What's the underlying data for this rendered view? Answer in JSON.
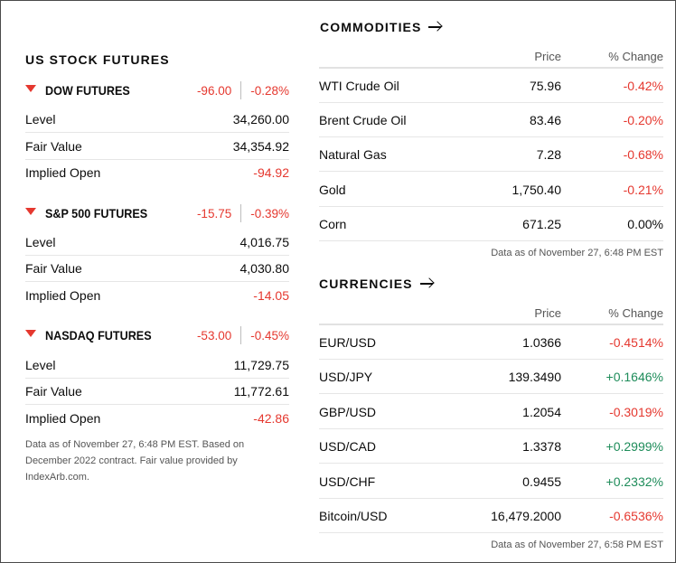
{
  "stock_futures": {
    "title": "US STOCK FUTURES",
    "futures": [
      {
        "name": "DOW FUTURES",
        "change": "-96.00",
        "pct_change": "-0.28%",
        "rows": [
          {
            "label": "Level",
            "value": "34,260.00"
          },
          {
            "label": "Fair Value",
            "value": "34,354.92"
          },
          {
            "label": "Implied Open",
            "value": "-94.92"
          }
        ]
      },
      {
        "name": "S&P 500 FUTURES",
        "change": "-15.75",
        "pct_change": "-0.39%",
        "rows": [
          {
            "label": "Level",
            "value": "4,016.75"
          },
          {
            "label": "Fair Value",
            "value": "4,030.80"
          },
          {
            "label": "Implied Open",
            "value": "-14.05"
          }
        ]
      },
      {
        "name": "NASDAQ FUTURES",
        "change": "-53.00",
        "pct_change": "-0.45%",
        "rows": [
          {
            "label": "Level",
            "value": "11,729.75"
          },
          {
            "label": "Fair Value",
            "value": "11,772.61"
          },
          {
            "label": "Implied Open",
            "value": "-42.86"
          }
        ]
      }
    ],
    "note": "Data as of November 27, 6:48 PM EST. Based on December 2022 contract. Fair value provided by IndexArb.com."
  },
  "commodities": {
    "title": "COMMODITIES",
    "col_price": "Price",
    "col_change": "% Change",
    "rows": [
      {
        "name": "WTI Crude Oil",
        "price": "75.96",
        "change": "-0.42%"
      },
      {
        "name": "Brent Crude Oil",
        "price": "83.46",
        "change": "-0.20%"
      },
      {
        "name": "Natural Gas",
        "price": "7.28",
        "change": "-0.68%"
      },
      {
        "name": "Gold",
        "price": "1,750.40",
        "change": "-0.21%"
      },
      {
        "name": "Corn",
        "price": "671.25",
        "change": "0.00%"
      }
    ],
    "as_of": "Data as of November 27, 6:48 PM EST"
  },
  "currencies": {
    "title": "CURRENCIES",
    "col_price": "Price",
    "col_change": "% Change",
    "rows": [
      {
        "name": "EUR/USD",
        "price": "1.0366",
        "change": "-0.4514%"
      },
      {
        "name": "USD/JPY",
        "price": "139.3490",
        "change": "+0.1646%"
      },
      {
        "name": "GBP/USD",
        "price": "1.2054",
        "change": "-0.3019%"
      },
      {
        "name": "USD/CAD",
        "price": "1.3378",
        "change": "+0.2999%"
      },
      {
        "name": "USD/CHF",
        "price": "0.9455",
        "change": "+0.2332%"
      },
      {
        "name": "Bitcoin/USD",
        "price": "16,479.2000",
        "change": "-0.6536%"
      }
    ],
    "as_of": "Data as of November 27, 6:58 PM EST"
  },
  "colors": {
    "negative": "#e5382f",
    "positive": "#1e8c5a",
    "text": "#0c0c0c"
  },
  "icons": {
    "down_indicator": "triangle-down-icon",
    "section_link": "arrow-right-icon"
  }
}
